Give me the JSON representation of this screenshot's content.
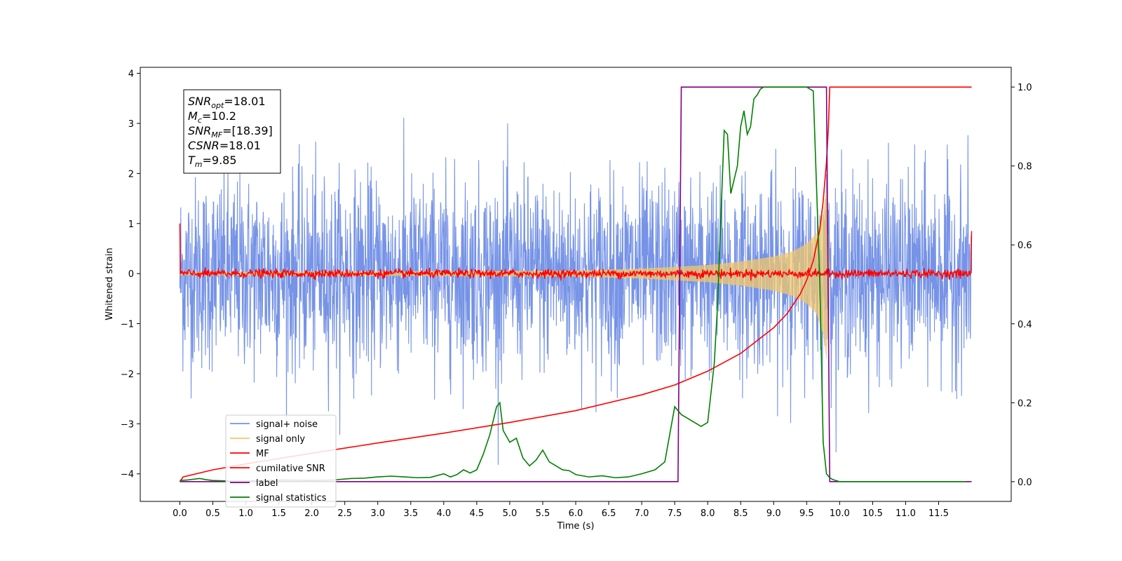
{
  "chart_data": {
    "type": "line",
    "xlabel": "Time (s)",
    "ylabel": "Whitened strain",
    "xlim": [
      -0.6,
      12.6
    ],
    "ylim": [
      -4.55,
      4.12
    ],
    "y2lim": [
      -0.05,
      1.05
    ],
    "x_ticks": [
      "0.0",
      "0.5",
      "1.0",
      "1.5",
      "2.0",
      "2.5",
      "3.0",
      "3.5",
      "4.0",
      "4.5",
      "5.0",
      "5.5",
      "6.0",
      "6.5",
      "7.0",
      "7.5",
      "8.0",
      "8.5",
      "9.0",
      "9.5",
      "10.0",
      "10.5",
      "11.0",
      "11.5"
    ],
    "x_tick_values": [
      0,
      0.5,
      1,
      1.5,
      2,
      2.5,
      3,
      3.5,
      4,
      4.5,
      5,
      5.5,
      6,
      6.5,
      7,
      7.5,
      8,
      8.5,
      9,
      9.5,
      10,
      10.5,
      11,
      11.5
    ],
    "y_ticks": [
      "−4",
      "−3",
      "−2",
      "−1",
      "0",
      "1",
      "2",
      "3",
      "4"
    ],
    "y_tick_values": [
      -4,
      -3,
      -2,
      -1,
      0,
      1,
      2,
      3,
      4
    ],
    "y2_ticks": [
      "0.0",
      "0.2",
      "0.4",
      "0.6",
      "0.8",
      "1.0"
    ],
    "y2_tick_values": [
      0,
      0.2,
      0.4,
      0.6,
      0.8,
      1.0
    ],
    "grid": false,
    "legend_position": "lower-left",
    "annotation": {
      "lines": [
        {
          "base": "SNR",
          "sub": "opt",
          "value": "=18.01"
        },
        {
          "base": "M",
          "sub": "c",
          "value": "=10.2"
        },
        {
          "base": "SNR",
          "sub": "MF",
          "value": "=[18.39]"
        },
        {
          "base": "CSNR",
          "sub": "",
          "value": "=18.01"
        },
        {
          "base": "T",
          "sub": "m",
          "value": "=9.85"
        }
      ]
    },
    "series": [
      {
        "name": "signal+ noise",
        "color": "#7693e6",
        "axis": "left",
        "t_range": [
          0,
          12
        ],
        "amplitude_range": [
          -4.0,
          3.3
        ],
        "description_values": {
          "typical_band": [
            -1.6,
            1.6
          ]
        }
      },
      {
        "name": "signal only",
        "color": "#f2c76b",
        "axis": "left",
        "t_range": [
          0,
          12
        ],
        "envelope": {
          "t": [
            0,
            6,
            7,
            8,
            8.5,
            9,
            9.3,
            9.5,
            9.65,
            9.75,
            9.8,
            9.85,
            12
          ],
          "amp": [
            0.03,
            0.06,
            0.1,
            0.17,
            0.24,
            0.34,
            0.45,
            0.6,
            0.8,
            1.2,
            1.7,
            0,
            0
          ]
        }
      },
      {
        "name": "MF",
        "color": "#ff0000",
        "axis": "left",
        "t_range": [
          0,
          12
        ],
        "edge_values": {
          "start": 1.0,
          "end": 0.85
        },
        "noise_amplitude": 0.07
      },
      {
        "name": "cumilative SNR",
        "color": "#ff0000",
        "axis": "right",
        "x": [
          0,
          0.05,
          0.5,
          1,
          2,
          3,
          4,
          5,
          6,
          7,
          7.5,
          8,
          8.5,
          9,
          9.2,
          9.4,
          9.5,
          9.6,
          9.7,
          9.75,
          9.8,
          9.83,
          9.85,
          9.9,
          12
        ],
        "y": [
          0.0,
          0.012,
          0.03,
          0.045,
          0.072,
          0.098,
          0.123,
          0.15,
          0.18,
          0.22,
          0.245,
          0.28,
          0.325,
          0.39,
          0.425,
          0.475,
          0.51,
          0.56,
          0.64,
          0.71,
          0.81,
          0.9,
          1.0,
          1.0,
          1.0
        ]
      },
      {
        "name": "label",
        "color": "#800080",
        "axis": "right",
        "x": [
          0,
          7.55,
          7.6,
          9.8,
          9.85,
          12
        ],
        "y": [
          0,
          0,
          1,
          1,
          0,
          0
        ]
      },
      {
        "name": "signal statistics",
        "color": "#008000",
        "axis": "right",
        "x": [
          0,
          0.1,
          0.3,
          0.4,
          0.5,
          0.7,
          1,
          1.3,
          1.6,
          2,
          2.3,
          2.6,
          2.8,
          3,
          3.2,
          3.4,
          3.6,
          3.8,
          4,
          4.1,
          4.2,
          4.3,
          4.4,
          4.5,
          4.6,
          4.7,
          4.8,
          4.85,
          4.9,
          5,
          5.1,
          5.2,
          5.3,
          5.4,
          5.5,
          5.6,
          5.7,
          5.8,
          5.9,
          6,
          6.2,
          6.4,
          6.6,
          6.8,
          7,
          7.2,
          7.35,
          7.5,
          7.6,
          7.7,
          7.8,
          7.9,
          8.0,
          8.1,
          8.15,
          8.2,
          8.25,
          8.3,
          8.35,
          8.45,
          8.5,
          8.55,
          8.6,
          8.65,
          8.7,
          8.75,
          8.8,
          8.85,
          8.95,
          9,
          9.1,
          9.2,
          9.3,
          9.4,
          9.5,
          9.6,
          9.7,
          9.75,
          9.8,
          9.85,
          9.9,
          10.0,
          10.5,
          11,
          11.5,
          11.9
        ],
        "y": [
          0.003,
          0.004,
          0.008,
          0.005,
          0.003,
          0.002,
          0.002,
          0.003,
          0.004,
          0.003,
          0.004,
          0.008,
          0.009,
          0.012,
          0.014,
          0.012,
          0.01,
          0.011,
          0.02,
          0.012,
          0.018,
          0.03,
          0.022,
          0.03,
          0.07,
          0.12,
          0.19,
          0.2,
          0.13,
          0.1,
          0.11,
          0.06,
          0.04,
          0.055,
          0.08,
          0.05,
          0.04,
          0.03,
          0.028,
          0.018,
          0.012,
          0.015,
          0.01,
          0.012,
          0.02,
          0.03,
          0.05,
          0.19,
          0.17,
          0.16,
          0.15,
          0.14,
          0.15,
          0.3,
          0.45,
          0.67,
          0.89,
          0.88,
          0.73,
          0.8,
          0.9,
          0.94,
          0.88,
          0.9,
          0.97,
          0.98,
          0.995,
          1.0,
          1.0,
          1.0,
          1.0,
          1.0,
          1.0,
          1.0,
          1.0,
          0.99,
          0.5,
          0.1,
          0.02,
          0.01,
          0.005,
          0.0,
          0.0,
          0.0,
          0.0,
          0.0
        ]
      }
    ]
  }
}
